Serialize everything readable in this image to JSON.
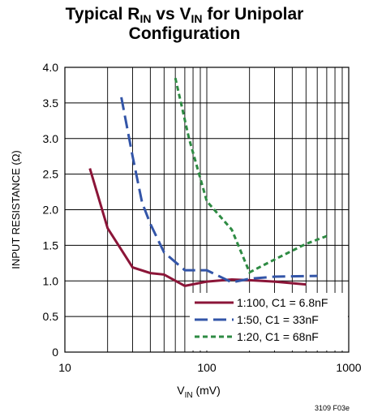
{
  "chart_data": {
    "type": "line",
    "title": {
      "line1_prefix": "Typical R",
      "line1_sub1": "IN",
      "line1_mid": " vs V",
      "line1_sub2": "IN",
      "line1_suffix": " for Unipolar",
      "line2": "Configuration"
    },
    "xlabel": {
      "main": "V",
      "sub": "IN",
      "unit": " (mV)"
    },
    "ylabel": "INPUT RESISTANCE (Ω)",
    "x_scale": "log",
    "xlim": [
      10,
      1000
    ],
    "ylim": [
      0,
      4.0
    ],
    "x_tick_labels": [
      {
        "value": 10,
        "label": "10"
      },
      {
        "value": 100,
        "label": "100"
      },
      {
        "value": 1000,
        "label": "1000"
      }
    ],
    "y_tick_labels": [
      {
        "value": 0,
        "label": "0"
      },
      {
        "value": 0.5,
        "label": "0.5"
      },
      {
        "value": 1.0,
        "label": "1.0"
      },
      {
        "value": 1.5,
        "label": "1.5"
      },
      {
        "value": 2.0,
        "label": "2.0"
      },
      {
        "value": 2.5,
        "label": "2.5"
      },
      {
        "value": 3.0,
        "label": "3.0"
      },
      {
        "value": 3.5,
        "label": "3.5"
      },
      {
        "value": 4.0,
        "label": "4.0"
      }
    ],
    "grid": true,
    "legend_position": "bottom-right",
    "series": [
      {
        "name": "1:100, C1 = 6.8nF",
        "color": "#8b1538",
        "style": "solid",
        "x": [
          15,
          20,
          30,
          40,
          50,
          70,
          100,
          150,
          200,
          300,
          500
        ],
        "y": [
          2.58,
          1.74,
          1.19,
          1.11,
          1.09,
          0.93,
          0.99,
          1.02,
          1.01,
          0.99,
          0.95
        ]
      },
      {
        "name": "1:50, C1 = 33nF",
        "color": "#3355a8",
        "style": "dashed",
        "x": [
          25,
          30,
          35,
          40,
          50,
          70,
          100,
          150,
          200,
          300,
          600
        ],
        "y": [
          3.58,
          2.75,
          2.1,
          1.8,
          1.4,
          1.15,
          1.15,
          0.98,
          1.03,
          1.06,
          1.07
        ]
      },
      {
        "name": "1:20, C1 = 68nF",
        "color": "#2e8b43",
        "style": "dotted",
        "x": [
          60,
          75,
          100,
          150,
          200,
          300,
          500,
          700
        ],
        "y": [
          3.85,
          3.0,
          2.12,
          1.72,
          1.12,
          1.3,
          1.52,
          1.63
        ]
      }
    ]
  },
  "figure_id": "3109 F03e"
}
